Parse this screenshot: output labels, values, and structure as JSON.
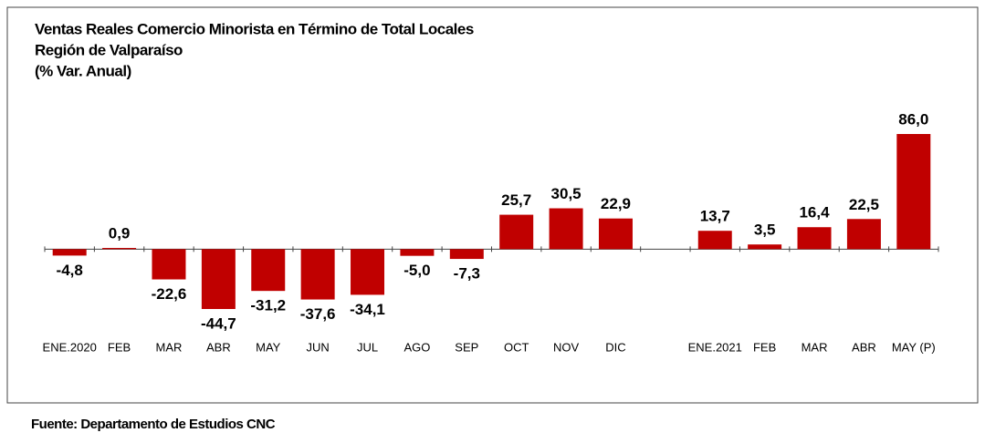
{
  "chart_data": {
    "type": "bar",
    "title": "Ventas Reales Comercio Minorista en Término de Total Locales",
    "subtitle": "Región de Valparaíso",
    "unit_label": "(% Var. Anual)",
    "source": "Fuente: Departamento de Estudios CNC",
    "color": "#c00000",
    "categories": [
      "ENE.2020",
      "FEB",
      "MAR",
      "ABR",
      "MAY",
      "JUN",
      "JUL",
      "AGO",
      "SEP",
      "OCT",
      "NOV",
      "DIC",
      null,
      "ENE.2021",
      "FEB",
      "MAR",
      "ABR",
      "MAY (P)"
    ],
    "values": [
      -4.8,
      0.9,
      -22.6,
      -44.7,
      -31.2,
      -37.6,
      -34.1,
      -5.0,
      -7.3,
      25.7,
      30.5,
      22.9,
      null,
      13.7,
      3.5,
      16.4,
      22.5,
      86.0
    ],
    "value_labels": [
      "-4,8",
      "0,9",
      "-22,6",
      "-44,7",
      "-31,2",
      "-37,6",
      "-34,1",
      "-5,0",
      "-7,3",
      "25,7",
      "30,5",
      "22,9",
      null,
      "13,7",
      "3,5",
      "16,4",
      "22,5",
      "86,0"
    ]
  }
}
